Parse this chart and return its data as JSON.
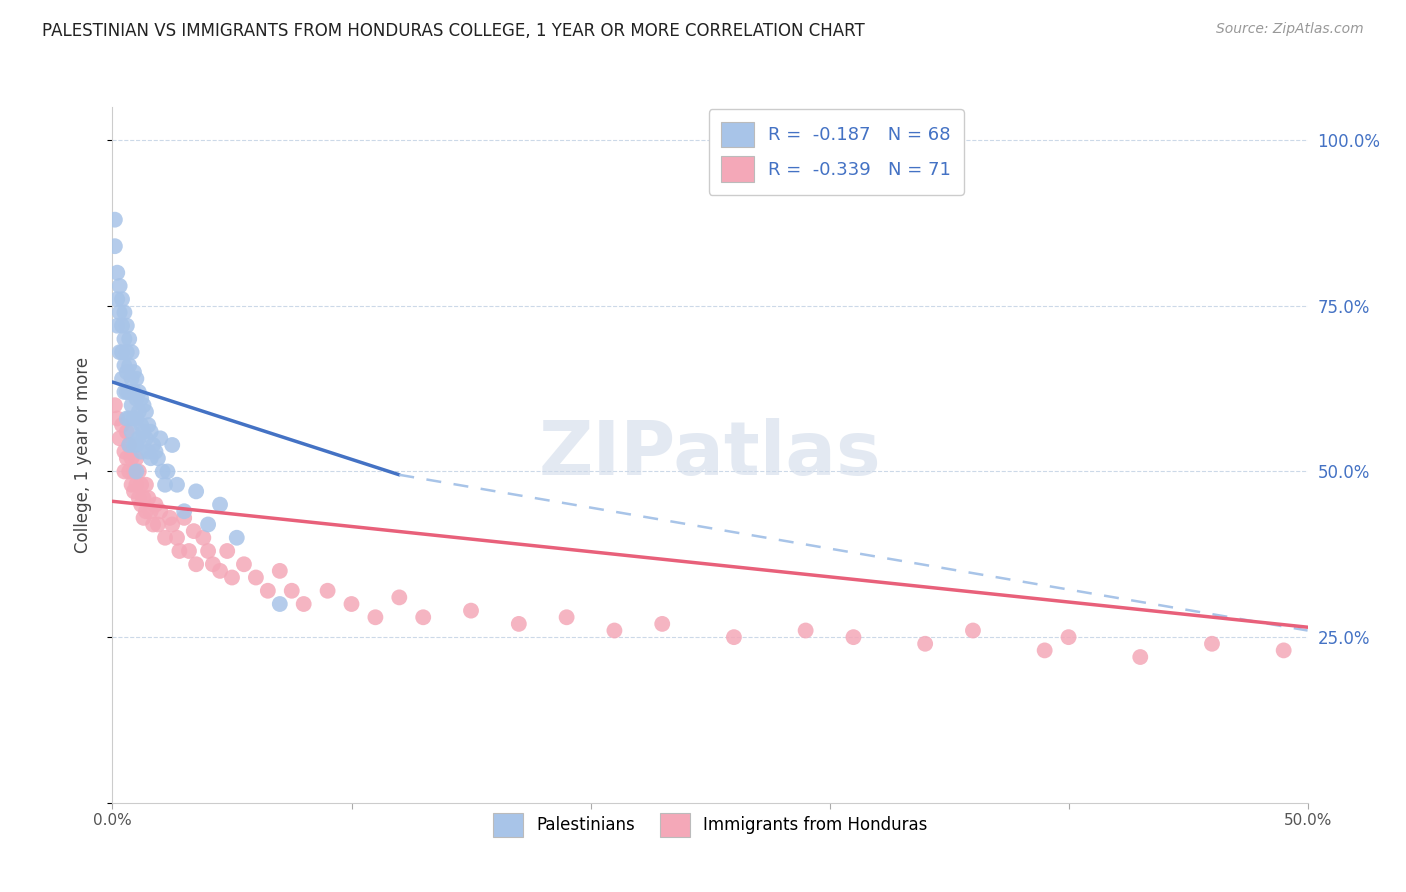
{
  "title": "PALESTINIAN VS IMMIGRANTS FROM HONDURAS COLLEGE, 1 YEAR OR MORE CORRELATION CHART",
  "source": "Source: ZipAtlas.com",
  "ylabel": "College, 1 year or more",
  "right_yticks": [
    "100.0%",
    "75.0%",
    "50.0%",
    "25.0%"
  ],
  "right_ytick_vals": [
    1.0,
    0.75,
    0.5,
    0.25
  ],
  "blue_R": -0.187,
  "blue_N": 68,
  "pink_R": -0.339,
  "pink_N": 71,
  "blue_color": "#a8c4e8",
  "pink_color": "#f4a8b8",
  "blue_line_color": "#4472c4",
  "pink_line_color": "#e8607a",
  "dashed_line_color": "#a8c4e8",
  "watermark": "ZIPatlas",
  "blue_scatter_x": [
    0.001,
    0.001,
    0.002,
    0.002,
    0.002,
    0.003,
    0.003,
    0.003,
    0.004,
    0.004,
    0.004,
    0.004,
    0.005,
    0.005,
    0.005,
    0.005,
    0.006,
    0.006,
    0.006,
    0.006,
    0.006,
    0.007,
    0.007,
    0.007,
    0.007,
    0.007,
    0.008,
    0.008,
    0.008,
    0.008,
    0.009,
    0.009,
    0.009,
    0.009,
    0.01,
    0.01,
    0.01,
    0.01,
    0.01,
    0.011,
    0.011,
    0.011,
    0.012,
    0.012,
    0.012,
    0.013,
    0.013,
    0.014,
    0.014,
    0.015,
    0.015,
    0.016,
    0.016,
    0.017,
    0.018,
    0.019,
    0.02,
    0.021,
    0.022,
    0.023,
    0.025,
    0.027,
    0.03,
    0.035,
    0.04,
    0.045,
    0.052,
    0.07
  ],
  "blue_scatter_y": [
    0.88,
    0.84,
    0.8,
    0.76,
    0.72,
    0.78,
    0.74,
    0.68,
    0.76,
    0.72,
    0.68,
    0.64,
    0.74,
    0.7,
    0.66,
    0.62,
    0.72,
    0.68,
    0.65,
    0.62,
    0.58,
    0.7,
    0.66,
    0.62,
    0.58,
    0.54,
    0.68,
    0.64,
    0.6,
    0.56,
    0.65,
    0.62,
    0.58,
    0.54,
    0.64,
    0.61,
    0.58,
    0.54,
    0.5,
    0.62,
    0.59,
    0.55,
    0.61,
    0.57,
    0.53,
    0.6,
    0.56,
    0.59,
    0.55,
    0.57,
    0.53,
    0.56,
    0.52,
    0.54,
    0.53,
    0.52,
    0.55,
    0.5,
    0.48,
    0.5,
    0.54,
    0.48,
    0.44,
    0.47,
    0.42,
    0.45,
    0.4,
    0.3
  ],
  "pink_scatter_x": [
    0.001,
    0.002,
    0.003,
    0.004,
    0.005,
    0.005,
    0.006,
    0.006,
    0.007,
    0.007,
    0.008,
    0.008,
    0.009,
    0.009,
    0.01,
    0.01,
    0.011,
    0.011,
    0.012,
    0.012,
    0.013,
    0.013,
    0.014,
    0.014,
    0.015,
    0.016,
    0.017,
    0.018,
    0.019,
    0.02,
    0.022,
    0.024,
    0.025,
    0.027,
    0.028,
    0.03,
    0.032,
    0.034,
    0.035,
    0.038,
    0.04,
    0.042,
    0.045,
    0.048,
    0.05,
    0.055,
    0.06,
    0.065,
    0.07,
    0.075,
    0.08,
    0.09,
    0.1,
    0.11,
    0.12,
    0.13,
    0.15,
    0.17,
    0.19,
    0.21,
    0.23,
    0.26,
    0.29,
    0.31,
    0.34,
    0.36,
    0.39,
    0.4,
    0.43,
    0.46,
    0.49
  ],
  "pink_scatter_y": [
    0.6,
    0.58,
    0.55,
    0.57,
    0.53,
    0.5,
    0.56,
    0.52,
    0.54,
    0.5,
    0.52,
    0.48,
    0.5,
    0.47,
    0.52,
    0.48,
    0.5,
    0.46,
    0.48,
    0.45,
    0.46,
    0.43,
    0.48,
    0.44,
    0.46,
    0.44,
    0.42,
    0.45,
    0.42,
    0.44,
    0.4,
    0.43,
    0.42,
    0.4,
    0.38,
    0.43,
    0.38,
    0.41,
    0.36,
    0.4,
    0.38,
    0.36,
    0.35,
    0.38,
    0.34,
    0.36,
    0.34,
    0.32,
    0.35,
    0.32,
    0.3,
    0.32,
    0.3,
    0.28,
    0.31,
    0.28,
    0.29,
    0.27,
    0.28,
    0.26,
    0.27,
    0.25,
    0.26,
    0.25,
    0.24,
    0.26,
    0.23,
    0.25,
    0.22,
    0.24,
    0.23
  ],
  "blue_line_x0": 0.0,
  "blue_line_y0": 0.635,
  "blue_line_x1": 0.12,
  "blue_line_y1": 0.495,
  "blue_line_xend": 0.5,
  "blue_line_yend": 0.26,
  "pink_line_x0": 0.0,
  "pink_line_y0": 0.455,
  "pink_line_x1": 0.5,
  "pink_line_y1": 0.265,
  "xlim": [
    0.0,
    0.5
  ],
  "ylim": [
    0.0,
    1.05
  ],
  "grid_color": "#ccd9e8",
  "background_color": "#ffffff"
}
